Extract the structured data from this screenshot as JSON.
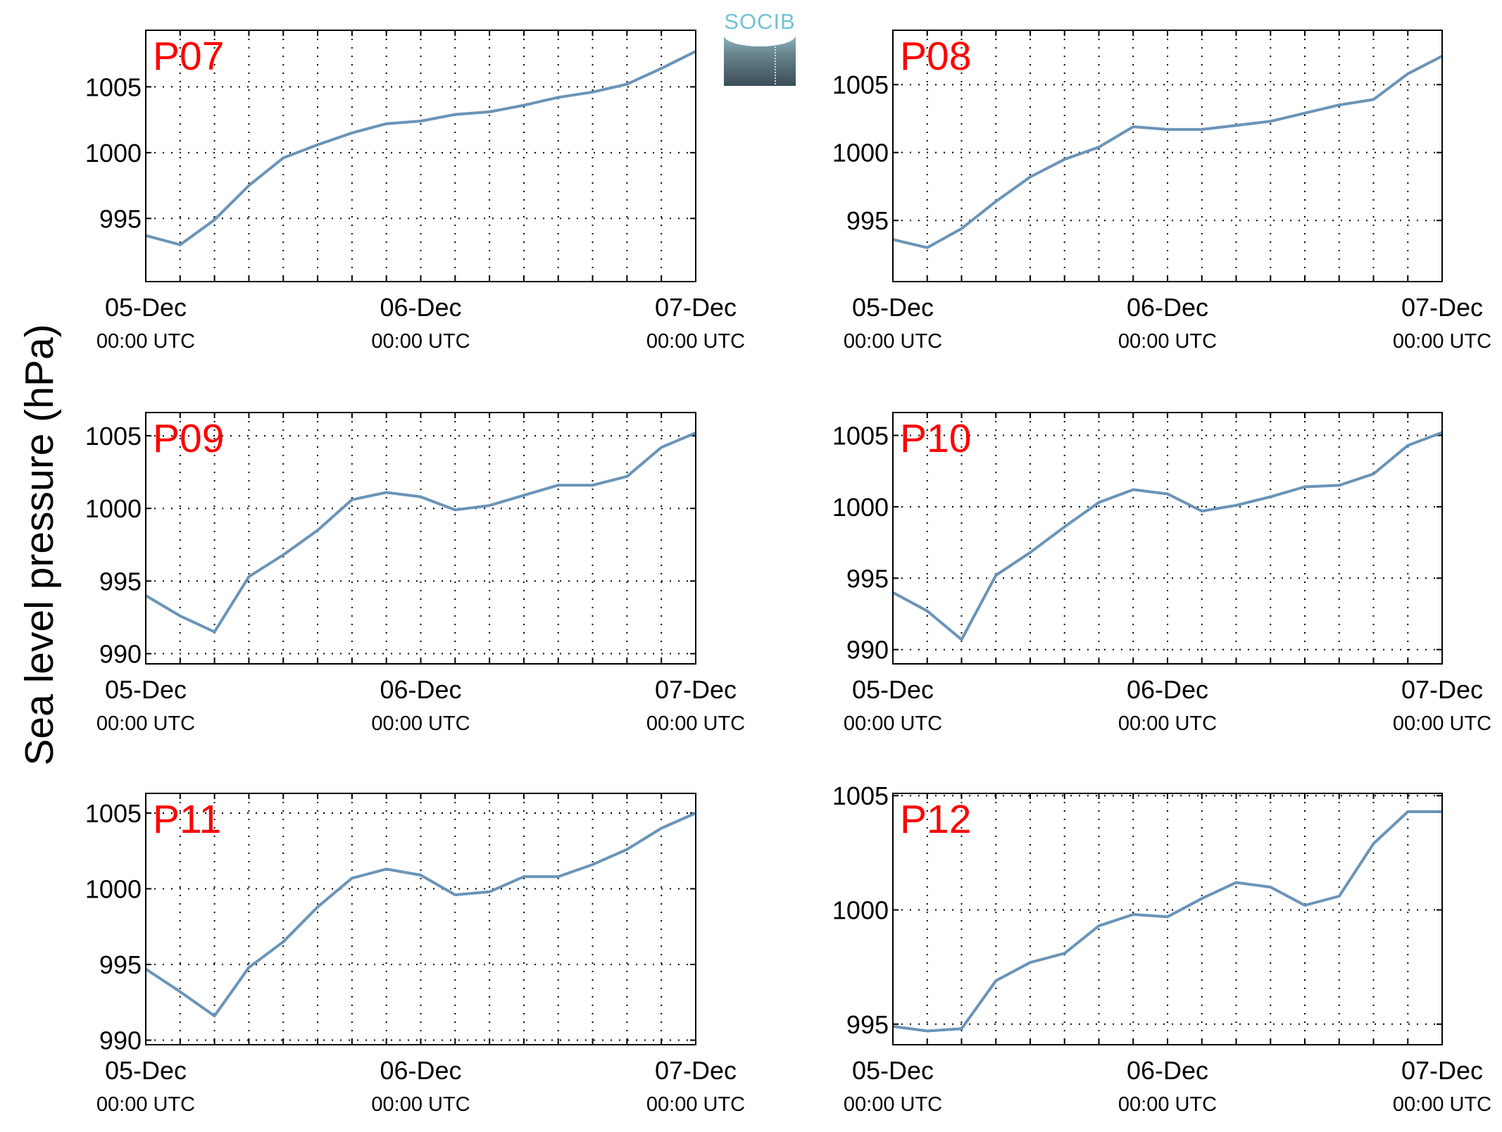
{
  "figure": {
    "ylabel": "Sea level pressure (hPa)",
    "logo_text": "SOCIB",
    "line_color": "#6a94b8",
    "label_color": "#ff0000"
  },
  "chart_data": [
    {
      "type": "line",
      "title": "P07",
      "x": [
        "05-Dec 00:00 UTC",
        "05-Dec 03:00",
        "05-Dec 06:00",
        "05-Dec 09:00",
        "05-Dec 12:00",
        "05-Dec 15:00",
        "05-Dec 18:00",
        "05-Dec 21:00",
        "06-Dec 00:00 UTC",
        "06-Dec 03:00",
        "06-Dec 06:00",
        "06-Dec 09:00",
        "06-Dec 12:00",
        "06-Dec 15:00",
        "06-Dec 18:00",
        "06-Dec 21:00",
        "07-Dec 00:00 UTC"
      ],
      "xticks": [
        {
          "date": "05-Dec",
          "time": "00:00 UTC"
        },
        {
          "date": "06-Dec",
          "time": "00:00 UTC"
        },
        {
          "date": "07-Dec",
          "time": "00:00 UTC"
        }
      ],
      "yticks": [
        995,
        1000,
        1005
      ],
      "ylim": [
        990.2,
        1009.3
      ],
      "series": [
        {
          "values": [
            993.7,
            993.0,
            994.9,
            997.5,
            999.6,
            1000.6,
            1001.5,
            1002.2,
            1002.4,
            1002.9,
            1003.1,
            1003.6,
            1004.2,
            1004.6,
            1005.2,
            1006.4,
            1007.7
          ]
        }
      ]
    },
    {
      "type": "line",
      "title": "P08",
      "x": [
        "05-Dec 00:00 UTC",
        "05-Dec 03:00",
        "05-Dec 06:00",
        "05-Dec 09:00",
        "05-Dec 12:00",
        "05-Dec 15:00",
        "05-Dec 18:00",
        "05-Dec 21:00",
        "06-Dec 00:00 UTC",
        "06-Dec 03:00",
        "06-Dec 06:00",
        "06-Dec 09:00",
        "06-Dec 12:00",
        "06-Dec 15:00",
        "06-Dec 18:00",
        "06-Dec 21:00",
        "07-Dec 00:00 UTC"
      ],
      "xticks": [
        {
          "date": "05-Dec",
          "time": "00:00 UTC"
        },
        {
          "date": "06-Dec",
          "time": "00:00 UTC"
        },
        {
          "date": "07-Dec",
          "time": "00:00 UTC"
        }
      ],
      "yticks": [
        995,
        1000,
        1005
      ],
      "ylim": [
        990.5,
        1009.0
      ],
      "series": [
        {
          "values": [
            993.6,
            993.0,
            994.4,
            996.4,
            998.2,
            999.5,
            1000.4,
            1001.9,
            1001.7,
            1001.7,
            1002.0,
            1002.3,
            1002.9,
            1003.5,
            1003.9,
            1005.8,
            1007.1
          ]
        }
      ]
    },
    {
      "type": "line",
      "title": "P09",
      "x": [
        "05-Dec 00:00 UTC",
        "05-Dec 03:00",
        "05-Dec 06:00",
        "05-Dec 09:00",
        "05-Dec 12:00",
        "05-Dec 15:00",
        "05-Dec 18:00",
        "05-Dec 21:00",
        "06-Dec 00:00 UTC",
        "06-Dec 03:00",
        "06-Dec 06:00",
        "06-Dec 09:00",
        "06-Dec 12:00",
        "06-Dec 15:00",
        "06-Dec 18:00",
        "06-Dec 21:00",
        "07-Dec 00:00 UTC"
      ],
      "xticks": [
        {
          "date": "05-Dec",
          "time": "00:00 UTC"
        },
        {
          "date": "06-Dec",
          "time": "00:00 UTC"
        },
        {
          "date": "07-Dec",
          "time": "00:00 UTC"
        }
      ],
      "yticks": [
        990,
        995,
        1000,
        1005
      ],
      "ylim": [
        989.3,
        1006.6
      ],
      "series": [
        {
          "values": [
            994.0,
            992.6,
            991.5,
            995.3,
            996.8,
            998.5,
            1000.6,
            1001.1,
            1000.8,
            999.9,
            1000.2,
            1000.9,
            1001.6,
            1001.6,
            1002.2,
            1004.2,
            1005.2
          ]
        }
      ]
    },
    {
      "type": "line",
      "title": "P10",
      "x": [
        "05-Dec 00:00 UTC",
        "05-Dec 03:00",
        "05-Dec 06:00",
        "05-Dec 09:00",
        "05-Dec 12:00",
        "05-Dec 15:00",
        "05-Dec 18:00",
        "05-Dec 21:00",
        "06-Dec 00:00 UTC",
        "06-Dec 03:00",
        "06-Dec 06:00",
        "06-Dec 09:00",
        "06-Dec 12:00",
        "06-Dec 15:00",
        "06-Dec 18:00",
        "06-Dec 21:00",
        "07-Dec 00:00 UTC"
      ],
      "xticks": [
        {
          "date": "05-Dec",
          "time": "00:00 UTC"
        },
        {
          "date": "06-Dec",
          "time": "00:00 UTC"
        },
        {
          "date": "07-Dec",
          "time": "00:00 UTC"
        }
      ],
      "yticks": [
        990,
        995,
        1000,
        1005
      ],
      "ylim": [
        989.0,
        1006.6
      ],
      "series": [
        {
          "values": [
            994.0,
            992.7,
            990.7,
            995.2,
            996.8,
            998.6,
            1000.3,
            1001.2,
            1000.9,
            999.7,
            1000.1,
            1000.7,
            1001.4,
            1001.5,
            1002.3,
            1004.3,
            1005.2
          ]
        }
      ]
    },
    {
      "type": "line",
      "title": "P11",
      "x": [
        "05-Dec 00:00 UTC",
        "05-Dec 03:00",
        "05-Dec 06:00",
        "05-Dec 09:00",
        "05-Dec 12:00",
        "05-Dec 15:00",
        "05-Dec 18:00",
        "05-Dec 21:00",
        "06-Dec 00:00 UTC",
        "06-Dec 03:00",
        "06-Dec 06:00",
        "06-Dec 09:00",
        "06-Dec 12:00",
        "06-Dec 15:00",
        "06-Dec 18:00",
        "06-Dec 21:00",
        "07-Dec 00:00 UTC"
      ],
      "xticks": [
        {
          "date": "05-Dec",
          "time": "00:00 UTC"
        },
        {
          "date": "06-Dec",
          "time": "00:00 UTC"
        },
        {
          "date": "07-Dec",
          "time": "00:00 UTC"
        }
      ],
      "yticks": [
        990,
        995,
        1000,
        1005
      ],
      "ylim": [
        989.7,
        1006.3
      ],
      "series": [
        {
          "values": [
            994.7,
            993.2,
            991.6,
            994.8,
            996.5,
            998.8,
            1000.7,
            1001.3,
            1000.9,
            999.6,
            999.8,
            1000.8,
            1000.8,
            1001.6,
            1002.6,
            1004.0,
            1005.0
          ]
        }
      ]
    },
    {
      "type": "line",
      "title": "P12",
      "x": [
        "05-Dec 00:00 UTC",
        "05-Dec 03:00",
        "05-Dec 06:00",
        "05-Dec 09:00",
        "05-Dec 12:00",
        "05-Dec 15:00",
        "05-Dec 18:00",
        "05-Dec 21:00",
        "06-Dec 00:00 UTC",
        "06-Dec 03:00",
        "06-Dec 06:00",
        "06-Dec 09:00",
        "06-Dec 12:00",
        "06-Dec 15:00",
        "06-Dec 18:00",
        "06-Dec 21:00",
        "07-Dec 00:00 UTC"
      ],
      "xticks": [
        {
          "date": "05-Dec",
          "time": "00:00 UTC"
        },
        {
          "date": "06-Dec",
          "time": "00:00 UTC"
        },
        {
          "date": "07-Dec",
          "time": "00:00 UTC"
        }
      ],
      "yticks": [
        995,
        1000,
        1005
      ],
      "ylim": [
        994.1,
        1005.1
      ],
      "series": [
        {
          "values": [
            994.9,
            994.7,
            994.8,
            996.9,
            997.7,
            998.1,
            999.3,
            999.8,
            999.7,
            1000.5,
            1001.2,
            1001.0,
            1000.2,
            1000.6,
            1002.9,
            1004.3,
            1004.3
          ]
        }
      ]
    }
  ]
}
